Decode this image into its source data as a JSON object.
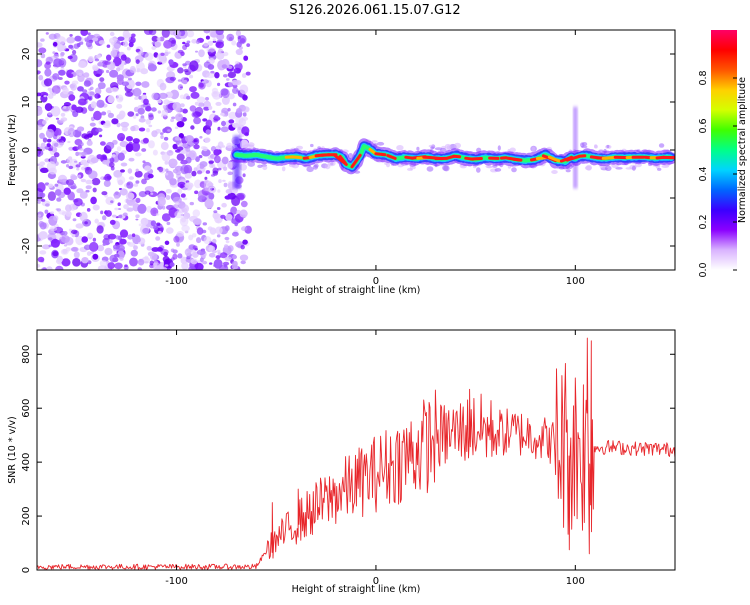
{
  "title": "S126.2026.061.15.07.G12",
  "chart_data": [
    {
      "type": "heatmap",
      "name": "spectrogram",
      "xlabel": "Height of straight line (km)",
      "ylabel": "Frequency (Hz)",
      "xlim": [
        -170,
        150
      ],
      "ylim": [
        -25,
        25
      ],
      "xticks": [
        -100,
        0,
        100
      ],
      "yticks": [
        -20,
        -10,
        0,
        10,
        20
      ],
      "noise_region_x": [
        -170,
        -70
      ],
      "dominant_frequency_track": {
        "x": [
          -70,
          -65,
          -60,
          -55,
          -50,
          -45,
          -40,
          -35,
          -30,
          -25,
          -20,
          -17,
          -15,
          -12,
          -10,
          -8,
          -6,
          -4,
          -2,
          0,
          5,
          10,
          15,
          20,
          25,
          30,
          35,
          40,
          45,
          50,
          55,
          60,
          65,
          70,
          75,
          80,
          85,
          90,
          95,
          98,
          100,
          102,
          105,
          110,
          115,
          120,
          125,
          130,
          135,
          140,
          145,
          148
        ],
        "y": [
          -1.0,
          -1.2,
          -1.0,
          -1.4,
          -1.8,
          -1.5,
          -1.4,
          -1.8,
          -1.2,
          -1.0,
          -1.0,
          -1.5,
          -3.0,
          -3.5,
          -2.5,
          -1.2,
          0.8,
          0.4,
          -0.2,
          -0.8,
          -1.0,
          -1.8,
          -1.5,
          -1.8,
          -1.4,
          -1.8,
          -1.8,
          -1.2,
          -1.7,
          -2.0,
          -1.6,
          -1.8,
          -1.6,
          -2.0,
          -2.2,
          -2.0,
          -1.0,
          -2.2,
          -2.4,
          -1.5,
          -1.8,
          -1.3,
          -1.2,
          -1.6,
          -1.8,
          -1.5,
          -1.6,
          -1.5,
          -1.5,
          -1.7,
          -1.5,
          -1.6
        ]
      },
      "colorbar": {
        "label": "Normalized spectral amplitude",
        "range": [
          0,
          1
        ],
        "ticks": [
          "0.0",
          "0.2",
          "0.4",
          "0.6",
          "0.8"
        ],
        "colors": [
          "#ffffff",
          "#d9b3ff",
          "#8b00ff",
          "#3a00ff",
          "#0066ff",
          "#00d4ff",
          "#00ff88",
          "#40ff00",
          "#d4ff00",
          "#ffd000",
          "#ff5500",
          "#ff0000",
          "#ff0066"
        ]
      }
    },
    {
      "type": "line",
      "name": "snr",
      "xlabel": "Height of straight line (km)",
      "ylabel": "SNR (10 * v/v)",
      "xlim": [
        -170,
        150
      ],
      "ylim": [
        0,
        890
      ],
      "xticks": [
        -100,
        0,
        100
      ],
      "yticks": [
        0,
        200,
        400,
        600,
        800
      ],
      "line_color": "#e8262b",
      "trend": {
        "x": [
          -170,
          -60,
          -55,
          -50,
          -40,
          -30,
          -20,
          -10,
          0,
          10,
          20,
          30,
          40,
          50,
          60,
          70,
          80,
          90,
          100,
          105,
          108,
          110,
          120,
          130,
          140,
          150
        ],
        "y": [
          12,
          12,
          70,
          110,
          175,
          230,
          280,
          320,
          360,
          400,
          440,
          490,
          510,
          530,
          510,
          510,
          500,
          470,
          460,
          455,
          440,
          455,
          455,
          450,
          450,
          445
        ]
      },
      "spikes": [
        {
          "x": -52,
          "y": 250
        },
        {
          "x": -39,
          "y": 300
        },
        {
          "x": 47,
          "y": 670
        },
        {
          "x": 95,
          "y": 740
        },
        {
          "x": 97,
          "y": 75
        },
        {
          "x": 106,
          "y": 860
        },
        {
          "x": 107,
          "y": 60
        },
        {
          "x": 108,
          "y": 850
        }
      ]
    }
  ]
}
